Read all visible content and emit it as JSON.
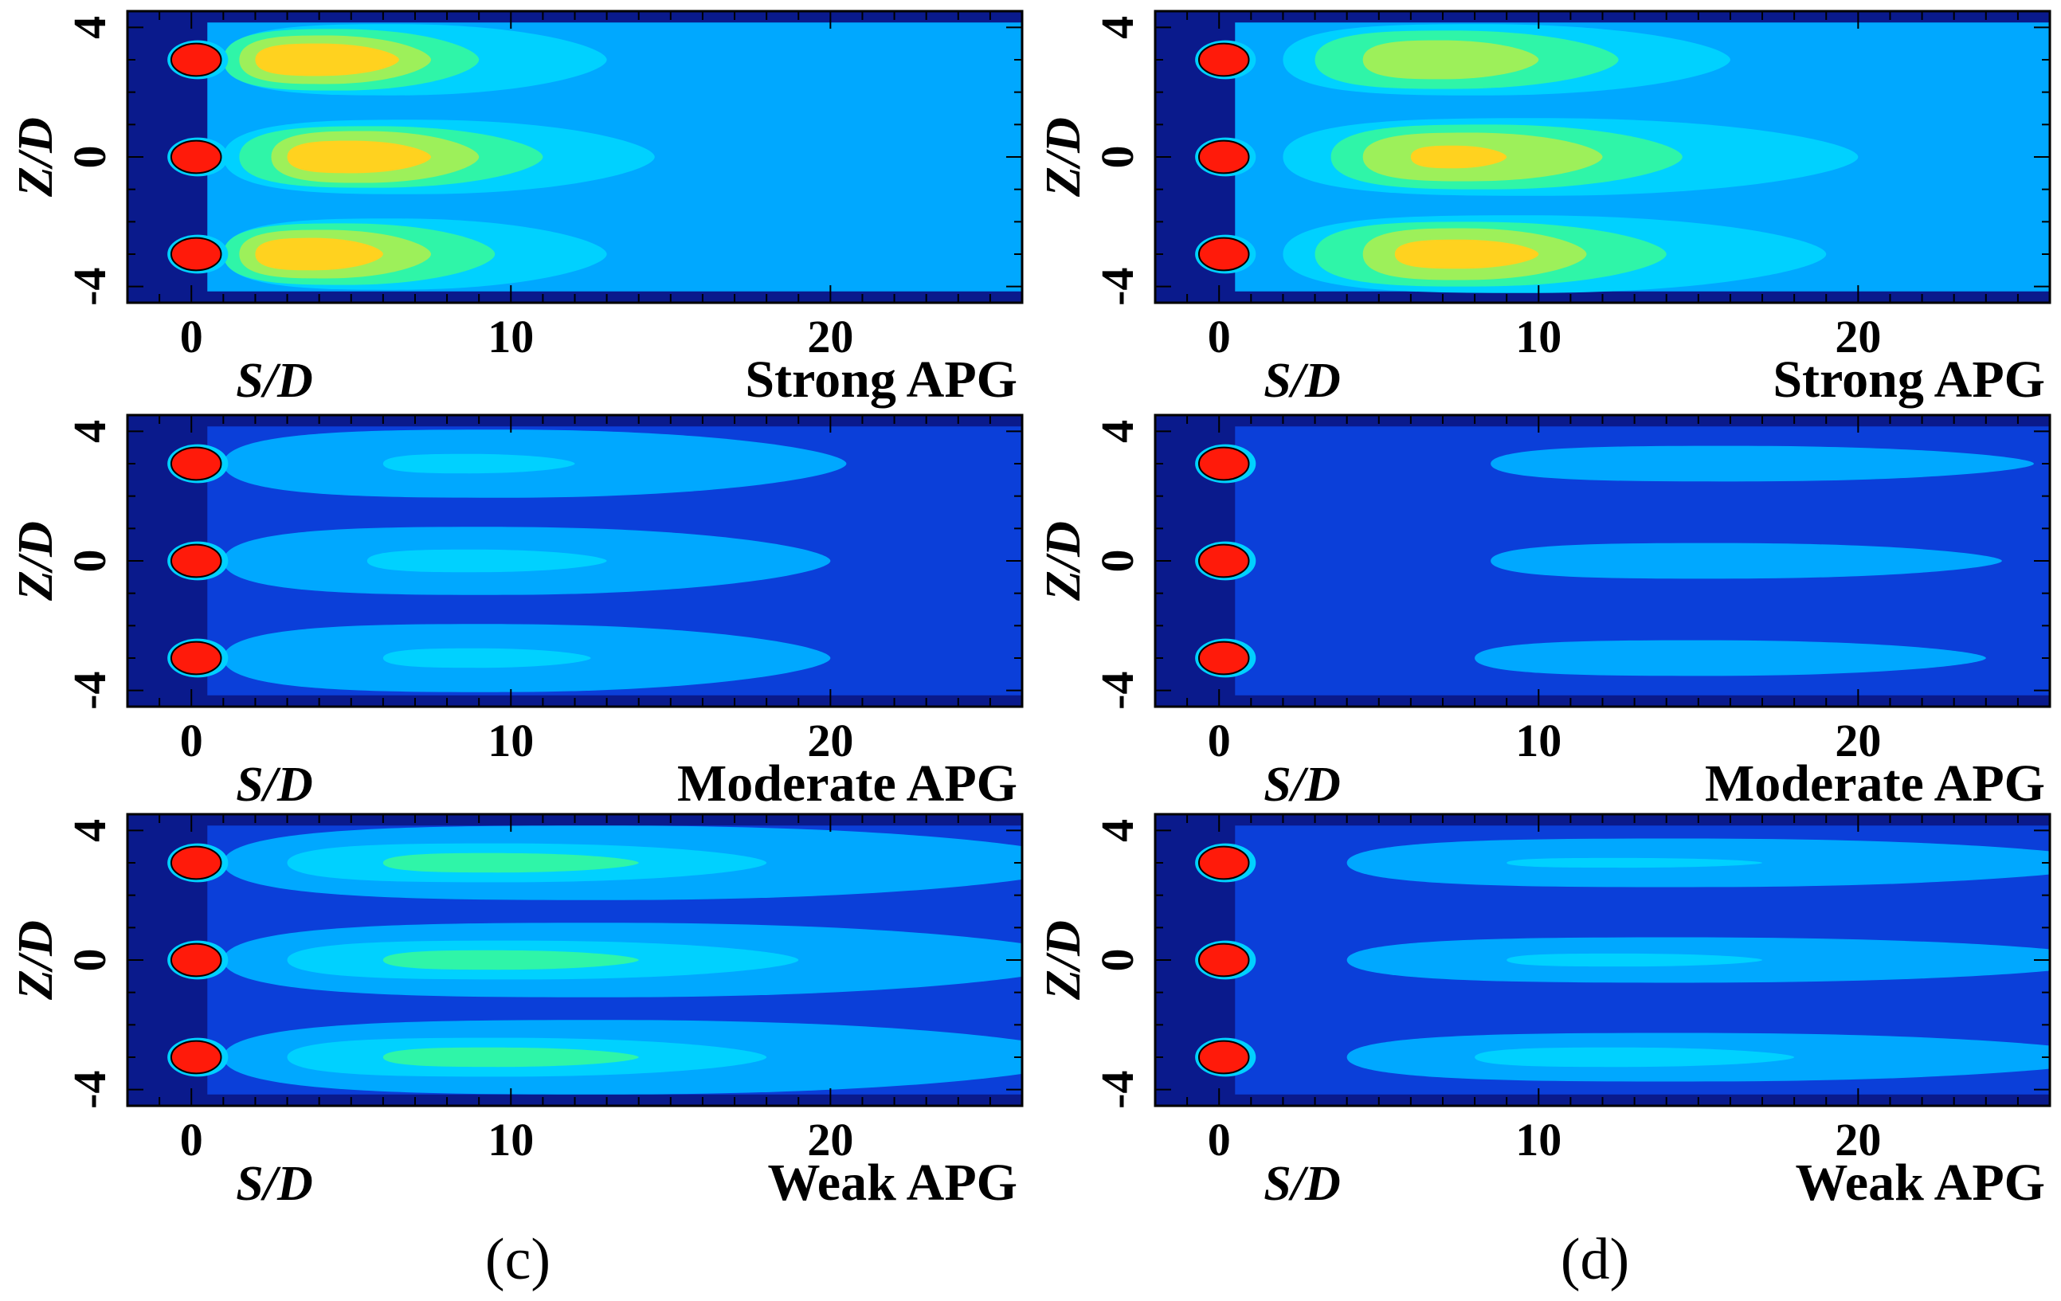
{
  "figure": {
    "subfigure_labels": [
      "(c)",
      "(d)"
    ]
  },
  "chart_data": [
    {
      "type": "heatmap",
      "subfigure": "(c)",
      "case_label": "Strong APG",
      "xlabel": "S/D",
      "ylabel": "Z/D",
      "xlim": [
        -2,
        26
      ],
      "ylim": [
        -4.5,
        4.5
      ],
      "xticks": [
        0,
        10,
        20
      ],
      "yticks": [
        4,
        0,
        -4
      ],
      "background_level": 2,
      "rows": [
        3,
        0,
        -3
      ],
      "plumes": [
        {
          "z": 3,
          "level": 3,
          "start": 1,
          "end": 13,
          "halfwidth": 1.1
        },
        {
          "z": 3,
          "level": 4,
          "start": 1,
          "end": 9,
          "halfwidth": 0.95
        },
        {
          "z": 3,
          "level": 5,
          "start": 1.5,
          "end": 7.5,
          "halfwidth": 0.75
        },
        {
          "z": 3,
          "level": 6,
          "start": 2,
          "end": 6.5,
          "halfwidth": 0.5
        },
        {
          "z": 0,
          "level": 3,
          "start": 1,
          "end": 14.5,
          "halfwidth": 1.15
        },
        {
          "z": 0,
          "level": 4,
          "start": 1.5,
          "end": 11,
          "halfwidth": 0.95
        },
        {
          "z": 0,
          "level": 5,
          "start": 2.5,
          "end": 9,
          "halfwidth": 0.8
        },
        {
          "z": 0,
          "level": 6,
          "start": 3,
          "end": 7.5,
          "halfwidth": 0.5
        },
        {
          "z": -3,
          "level": 3,
          "start": 1,
          "end": 13,
          "halfwidth": 1.1
        },
        {
          "z": -3,
          "level": 4,
          "start": 1,
          "end": 9.5,
          "halfwidth": 0.95
        },
        {
          "z": -3,
          "level": 5,
          "start": 1.5,
          "end": 7.5,
          "halfwidth": 0.75
        },
        {
          "z": -3,
          "level": 6,
          "start": 2,
          "end": 6,
          "halfwidth": 0.5
        }
      ]
    },
    {
      "type": "heatmap",
      "subfigure": "(d)",
      "case_label": "Strong APG",
      "xlabel": "S/D",
      "ylabel": "Z/D",
      "xlim": [
        -2,
        26
      ],
      "ylim": [
        -4.5,
        4.5
      ],
      "xticks": [
        0,
        10,
        20
      ],
      "yticks": [
        4,
        0,
        -4
      ],
      "background_level": 2,
      "rows": [
        3,
        0,
        -3
      ],
      "plumes": [
        {
          "z": 3,
          "level": 3,
          "start": 2,
          "end": 16,
          "halfwidth": 1.1
        },
        {
          "z": 3,
          "level": 4,
          "start": 3,
          "end": 12.5,
          "halfwidth": 0.9
        },
        {
          "z": 3,
          "level": 5,
          "start": 4.5,
          "end": 10,
          "halfwidth": 0.6
        },
        {
          "z": 0,
          "level": 3,
          "start": 2,
          "end": 20,
          "halfwidth": 1.2
        },
        {
          "z": 0,
          "level": 4,
          "start": 3.5,
          "end": 14.5,
          "halfwidth": 1.0
        },
        {
          "z": 0,
          "level": 5,
          "start": 4.5,
          "end": 12,
          "halfwidth": 0.75
        },
        {
          "z": 0,
          "level": 6,
          "start": 6,
          "end": 9,
          "halfwidth": 0.35
        },
        {
          "z": -3,
          "level": 3,
          "start": 2,
          "end": 19,
          "halfwidth": 1.2
        },
        {
          "z": -3,
          "level": 4,
          "start": 3,
          "end": 14,
          "halfwidth": 1.0
        },
        {
          "z": -3,
          "level": 5,
          "start": 4.5,
          "end": 11.5,
          "halfwidth": 0.8
        },
        {
          "z": -3,
          "level": 6,
          "start": 5.5,
          "end": 10,
          "halfwidth": 0.45
        }
      ]
    },
    {
      "type": "heatmap",
      "subfigure": "(c)",
      "case_label": "Moderate APG",
      "xlabel": "S/D",
      "ylabel": "Z/D",
      "xlim": [
        -2,
        26
      ],
      "ylim": [
        -4.5,
        4.5
      ],
      "xticks": [
        0,
        10,
        20
      ],
      "yticks": [
        4,
        0,
        -4
      ],
      "background_level": 1,
      "rows": [
        3,
        0,
        -3
      ],
      "plumes": [
        {
          "z": 3,
          "level": 2,
          "start": 1,
          "end": 20.5,
          "halfwidth": 1.05
        },
        {
          "z": 3,
          "level": 3,
          "start": 6,
          "end": 12,
          "halfwidth": 0.3
        },
        {
          "z": 0,
          "level": 2,
          "start": 1,
          "end": 20,
          "halfwidth": 1.05
        },
        {
          "z": 0,
          "level": 3,
          "start": 5.5,
          "end": 13,
          "halfwidth": 0.35
        },
        {
          "z": -3,
          "level": 2,
          "start": 1,
          "end": 20,
          "halfwidth": 1.05
        },
        {
          "z": -3,
          "level": 3,
          "start": 6,
          "end": 12.5,
          "halfwidth": 0.3
        }
      ]
    },
    {
      "type": "heatmap",
      "subfigure": "(d)",
      "case_label": "Moderate APG",
      "xlabel": "S/D",
      "ylabel": "Z/D",
      "xlim": [
        -2,
        26
      ],
      "ylim": [
        -4.5,
        4.5
      ],
      "xticks": [
        0,
        10,
        20
      ],
      "yticks": [
        4,
        0,
        -4
      ],
      "background_level": 1,
      "rows": [
        3,
        0,
        -3
      ],
      "plumes": [
        {
          "z": 3,
          "level": 2,
          "start": 8.5,
          "end": 25.5,
          "halfwidth": 0.55
        },
        {
          "z": 0,
          "level": 2,
          "start": 8.5,
          "end": 24.5,
          "halfwidth": 0.55
        },
        {
          "z": -3,
          "level": 2,
          "start": 8,
          "end": 24,
          "halfwidth": 0.55
        }
      ]
    },
    {
      "type": "heatmap",
      "subfigure": "(c)",
      "case_label": "Weak APG",
      "xlabel": "S/D",
      "ylabel": "Z/D",
      "xlim": [
        -2,
        26
      ],
      "ylim": [
        -4.5,
        4.5
      ],
      "xticks": [
        0,
        10,
        20
      ],
      "yticks": [
        4,
        0,
        -4
      ],
      "background_level": 1,
      "rows": [
        3,
        0,
        -3
      ],
      "plumes": [
        {
          "z": 3,
          "level": 2,
          "start": 1,
          "end": 28,
          "halfwidth": 1.15
        },
        {
          "z": 3,
          "level": 3,
          "start": 3,
          "end": 18,
          "halfwidth": 0.6
        },
        {
          "z": 3,
          "level": 4,
          "start": 6,
          "end": 14,
          "halfwidth": 0.3
        },
        {
          "z": 0,
          "level": 2,
          "start": 1,
          "end": 28,
          "halfwidth": 1.15
        },
        {
          "z": 0,
          "level": 3,
          "start": 3,
          "end": 19,
          "halfwidth": 0.6
        },
        {
          "z": 0,
          "level": 4,
          "start": 6,
          "end": 14,
          "halfwidth": 0.3
        },
        {
          "z": -3,
          "level": 2,
          "start": 1,
          "end": 28,
          "halfwidth": 1.15
        },
        {
          "z": -3,
          "level": 3,
          "start": 3,
          "end": 18,
          "halfwidth": 0.6
        },
        {
          "z": -3,
          "level": 4,
          "start": 6,
          "end": 14,
          "halfwidth": 0.3
        }
      ]
    },
    {
      "type": "heatmap",
      "subfigure": "(d)",
      "case_label": "Weak APG",
      "xlabel": "S/D",
      "ylabel": "Z/D",
      "xlim": [
        -2,
        26
      ],
      "ylim": [
        -4.5,
        4.5
      ],
      "xticks": [
        0,
        10,
        20
      ],
      "yticks": [
        4,
        0,
        -4
      ],
      "background_level": 1,
      "rows": [
        3,
        0,
        -3
      ],
      "plumes": [
        {
          "z": 3,
          "level": 2,
          "start": 4,
          "end": 28,
          "halfwidth": 0.75
        },
        {
          "z": 3,
          "level": 3,
          "start": 9,
          "end": 17,
          "halfwidth": 0.15
        },
        {
          "z": 0,
          "level": 2,
          "start": 4,
          "end": 28,
          "halfwidth": 0.7
        },
        {
          "z": 0,
          "level": 3,
          "start": 9,
          "end": 17,
          "halfwidth": 0.2
        },
        {
          "z": -3,
          "level": 2,
          "start": 4,
          "end": 28,
          "halfwidth": 0.75
        },
        {
          "z": -3,
          "level": 3,
          "start": 8,
          "end": 18,
          "halfwidth": 0.3
        }
      ]
    }
  ],
  "colormap": [
    "#0a1a8c",
    "#0b3fd9",
    "#00a8ff",
    "#00d1ff",
    "#2ff5a8",
    "#9df05a",
    "#ffd21f",
    "#ff7a12",
    "#ff1a0a"
  ]
}
